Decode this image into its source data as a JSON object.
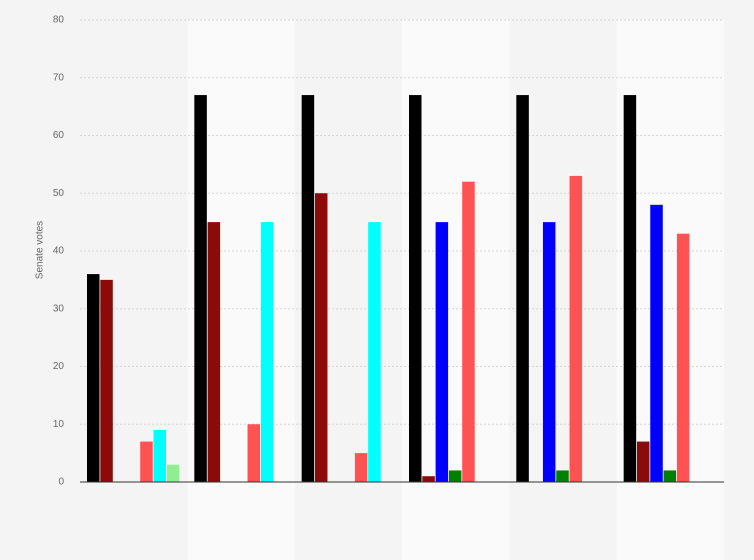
{
  "chart_data": {
    "type": "bar",
    "y_label": "Senate votes",
    "categories": [
      null,
      null,
      null,
      null,
      null,
      null
    ],
    "series": [
      {
        "color": "#000000",
        "values": [
          36,
          67,
          67,
          67,
          67,
          67
        ]
      },
      {
        "color": "#8b0a0a",
        "values": [
          35,
          45,
          50,
          1,
          null,
          7
        ]
      },
      {
        "color": "#0000ff",
        "values": [
          null,
          null,
          null,
          45,
          45,
          48
        ]
      },
      {
        "color": "#008000",
        "values": [
          null,
          null,
          null,
          2,
          2,
          2
        ]
      },
      {
        "color": "#ff5252",
        "values": [
          7,
          10,
          5,
          52,
          53,
          43
        ]
      },
      {
        "color": "#00ffff",
        "values": [
          9,
          45,
          45,
          null,
          null,
          null
        ]
      },
      {
        "color": "#90ee90",
        "values": [
          3,
          null,
          null,
          null,
          null,
          null
        ]
      }
    ],
    "ylim": [
      0,
      80
    ],
    "yticks": [
      0,
      10,
      20,
      30,
      40,
      50,
      60,
      70,
      80
    ],
    "grid": true
  }
}
